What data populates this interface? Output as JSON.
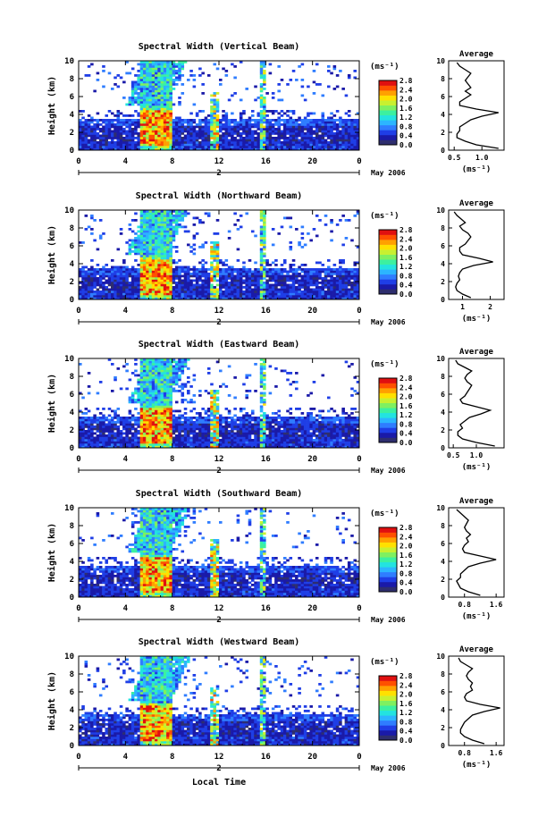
{
  "figure": {
    "xlabel": "Local Time",
    "colorbar_unit": "(ms⁻¹)",
    "colorbar_ticks": [
      "0.0",
      "0.4",
      "0.8",
      "1.2",
      "1.6",
      "2.0",
      "2.4",
      "2.8"
    ],
    "colormap": [
      "#2e2e6e",
      "#1a1aa8",
      "#1f3ee6",
      "#2f7dff",
      "#2cb5ff",
      "#23e3e0",
      "#3cf0a0",
      "#7ff060",
      "#c8f030",
      "#ffe000",
      "#ffa000",
      "#ff5000",
      "#e01010"
    ],
    "date_label": "May 2006",
    "day_marker": "2",
    "average_title": "Average",
    "average_xlabel": "(ms⁻¹)"
  },
  "chart_data": [
    {
      "type": "heatmap",
      "title": "Spectral Width (Vertical Beam)",
      "ylabel": "Height (km)",
      "xlim": [
        0,
        24
      ],
      "ylim": [
        0,
        10
      ],
      "x_ticks": [
        "0",
        "4",
        "8",
        "12",
        "16",
        "20",
        "0"
      ],
      "y_ticks": [
        "0",
        "2",
        "4",
        "6",
        "8",
        "10"
      ],
      "clim": [
        0,
        2.8
      ],
      "profile": {
        "title": "Average",
        "xlim": [
          0.4,
          1.4
        ],
        "x_ticks": [
          "0.5",
          "1.0"
        ],
        "y_ticks": [
          "0",
          "2",
          "4",
          "6",
          "8",
          "10"
        ],
        "height_km": [
          0.2,
          0.6,
          1.0,
          1.4,
          1.8,
          2.2,
          2.6,
          3.0,
          3.4,
          3.8,
          4.2,
          4.6,
          5.0,
          5.4,
          5.8,
          6.2,
          6.6,
          7.0,
          7.4,
          7.8,
          8.2,
          8.6,
          9.0,
          9.4,
          9.8
        ],
        "width": [
          1.3,
          0.9,
          0.7,
          0.55,
          0.55,
          0.6,
          0.6,
          0.7,
          0.8,
          1.0,
          1.3,
          0.9,
          0.6,
          0.6,
          0.7,
          0.8,
          0.7,
          0.8,
          0.75,
          0.7,
          0.75,
          0.8,
          0.7,
          0.6,
          0.55
        ]
      }
    },
    {
      "type": "heatmap",
      "title": "Spectral Width (Northward Beam)",
      "ylabel": "Height (km)",
      "xlim": [
        0,
        24
      ],
      "ylim": [
        0,
        10
      ],
      "x_ticks": [
        "0",
        "4",
        "8",
        "12",
        "16",
        "20",
        "0"
      ],
      "y_ticks": [
        "0",
        "2",
        "4",
        "6",
        "8",
        "10"
      ],
      "clim": [
        0,
        2.8
      ],
      "profile": {
        "title": "Average",
        "xlim": [
          0.5,
          2.5
        ],
        "x_ticks": [
          "1",
          "2"
        ],
        "y_ticks": [
          "0",
          "2",
          "4",
          "6",
          "8",
          "10"
        ],
        "height_km": [
          0.2,
          0.6,
          1.0,
          1.4,
          1.8,
          2.2,
          2.6,
          3.0,
          3.4,
          3.8,
          4.2,
          4.6,
          5.0,
          5.4,
          5.8,
          6.2,
          6.6,
          7.0,
          7.4,
          7.8,
          8.2,
          8.6,
          9.0,
          9.4,
          9.8
        ],
        "width": [
          1.3,
          1.0,
          0.8,
          0.75,
          0.8,
          0.9,
          0.85,
          0.9,
          1.0,
          1.4,
          2.1,
          1.6,
          1.0,
          0.9,
          0.9,
          1.1,
          1.2,
          1.3,
          1.2,
          1.0,
          0.9,
          1.1,
          0.95,
          0.8,
          0.7
        ]
      }
    },
    {
      "type": "heatmap",
      "title": "Spectral Width (Eastward Beam)",
      "ylabel": "Height (km)",
      "xlim": [
        0,
        24
      ],
      "ylim": [
        0,
        10
      ],
      "x_ticks": [
        "0",
        "4",
        "8",
        "12",
        "16",
        "20",
        "0"
      ],
      "y_ticks": [
        "0",
        "2",
        "4",
        "6",
        "8",
        "10"
      ],
      "clim": [
        0,
        2.8
      ],
      "profile": {
        "title": "Average",
        "xlim": [
          0.4,
          1.6
        ],
        "x_ticks": [
          "0.5",
          "1.0"
        ],
        "y_ticks": [
          "0",
          "2",
          "4",
          "6",
          "8",
          "10"
        ],
        "height_km": [
          0.2,
          0.6,
          1.0,
          1.4,
          1.8,
          2.2,
          2.6,
          3.0,
          3.4,
          3.8,
          4.2,
          4.6,
          5.0,
          5.4,
          5.8,
          6.2,
          6.6,
          7.0,
          7.4,
          7.8,
          8.2,
          8.6,
          9.0,
          9.4,
          9.8
        ],
        "width": [
          1.4,
          1.0,
          0.7,
          0.6,
          0.6,
          0.7,
          0.65,
          0.75,
          0.85,
          1.1,
          1.3,
          1.0,
          0.7,
          0.65,
          0.75,
          0.8,
          0.85,
          0.9,
          0.8,
          0.75,
          0.8,
          0.9,
          0.75,
          0.6,
          0.55
        ]
      }
    },
    {
      "type": "heatmap",
      "title": "Spectral Width (Southward Beam)",
      "ylabel": "Height (km)",
      "xlim": [
        0,
        24
      ],
      "ylim": [
        0,
        10
      ],
      "x_ticks": [
        "0",
        "4",
        "8",
        "12",
        "16",
        "20",
        "0"
      ],
      "y_ticks": [
        "0",
        "2",
        "4",
        "6",
        "8",
        "10"
      ],
      "clim": [
        0,
        2.8
      ],
      "profile": {
        "title": "Average",
        "xlim": [
          0.4,
          1.8
        ],
        "x_ticks": [
          "0.8",
          "1.6"
        ],
        "y_ticks": [
          "0",
          "2",
          "4",
          "6",
          "8",
          "10"
        ],
        "height_km": [
          0.2,
          0.6,
          1.0,
          1.4,
          1.8,
          2.2,
          2.6,
          3.0,
          3.4,
          3.8,
          4.2,
          4.6,
          5.0,
          5.4,
          5.8,
          6.2,
          6.6,
          7.0,
          7.4,
          7.8,
          8.2,
          8.6,
          9.0,
          9.4,
          9.8
        ],
        "width": [
          1.2,
          0.9,
          0.7,
          0.65,
          0.6,
          0.7,
          0.7,
          0.8,
          0.9,
          1.2,
          1.6,
          1.2,
          0.8,
          0.75,
          0.8,
          0.9,
          0.85,
          0.95,
          0.85,
          0.8,
          0.85,
          0.9,
          0.8,
          0.7,
          0.6
        ]
      }
    },
    {
      "type": "heatmap",
      "title": "Spectral Width (Westward Beam)",
      "ylabel": "Height (km)",
      "xlim": [
        0,
        24
      ],
      "ylim": [
        0,
        10
      ],
      "x_ticks": [
        "0",
        "4",
        "8",
        "12",
        "16",
        "20",
        "0"
      ],
      "y_ticks": [
        "0",
        "2",
        "4",
        "6",
        "8",
        "10"
      ],
      "clim": [
        0,
        2.8
      ],
      "profile": {
        "title": "Average",
        "xlim": [
          0.4,
          1.8
        ],
        "x_ticks": [
          "0.8",
          "1.6"
        ],
        "y_ticks": [
          "0",
          "2",
          "4",
          "6",
          "8",
          "10"
        ],
        "height_km": [
          0.2,
          0.6,
          1.0,
          1.4,
          1.8,
          2.2,
          2.6,
          3.0,
          3.4,
          3.8,
          4.2,
          4.6,
          5.0,
          5.4,
          5.8,
          6.2,
          6.6,
          7.0,
          7.4,
          7.8,
          8.2,
          8.6,
          9.0,
          9.4,
          9.8
        ],
        "width": [
          1.3,
          1.0,
          0.8,
          0.7,
          0.7,
          0.75,
          0.8,
          0.9,
          1.0,
          1.3,
          1.7,
          1.2,
          0.85,
          0.8,
          0.85,
          1.0,
          0.95,
          1.0,
          0.9,
          0.85,
          0.9,
          1.0,
          0.85,
          0.7,
          0.65
        ]
      }
    }
  ]
}
